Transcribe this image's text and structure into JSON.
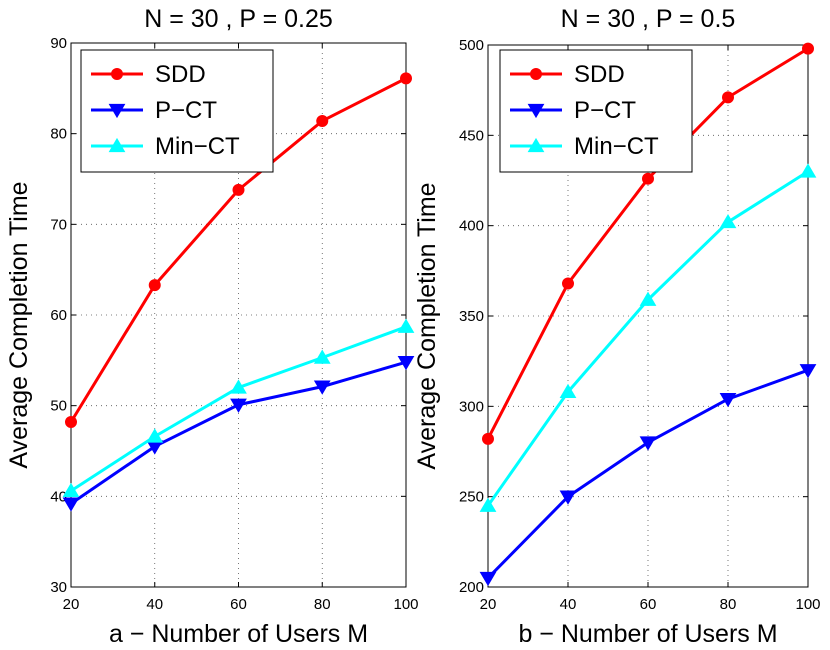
{
  "chart_data": [
    {
      "type": "line",
      "title": "N = 30 , P = 0.25",
      "xlabel": "a − Number of Users M",
      "ylabel": "Average Completion Time",
      "x": [
        20,
        40,
        60,
        80,
        100
      ],
      "xlim": [
        20,
        100
      ],
      "ylim": [
        30,
        90
      ],
      "xticks": [
        20,
        40,
        60,
        80,
        100
      ],
      "yticks": [
        30,
        40,
        50,
        60,
        70,
        80,
        90
      ],
      "grid": true,
      "legend_position": "top-left",
      "series": [
        {
          "name": "SDD",
          "color": "#ff0000",
          "marker": "circle",
          "values": [
            48.2,
            63.3,
            73.8,
            81.4,
            86.1
          ]
        },
        {
          "name": "P−CT",
          "color": "#0000ff",
          "marker": "triangle-down",
          "values": [
            39.2,
            45.5,
            50.1,
            52.1,
            54.8
          ]
        },
        {
          "name": "Min−CT",
          "color": "#00ffff",
          "marker": "triangle-up",
          "values": [
            40.6,
            46.6,
            52.0,
            55.3,
            58.7
          ]
        }
      ]
    },
    {
      "type": "line",
      "title": "N = 30 , P = 0.5",
      "xlabel": "b − Number of Users M",
      "ylabel": "Average Completion Time",
      "x": [
        20,
        40,
        60,
        80,
        100
      ],
      "xlim": [
        20,
        100
      ],
      "ylim": [
        200,
        500
      ],
      "xticks": [
        20,
        40,
        60,
        80,
        100
      ],
      "yticks": [
        200,
        250,
        300,
        350,
        400,
        450,
        500
      ],
      "grid": true,
      "legend_position": "top-left",
      "series": [
        {
          "name": "SDD",
          "color": "#ff0000",
          "marker": "circle",
          "values": [
            282,
            368,
            426,
            471,
            498
          ]
        },
        {
          "name": "P−CT",
          "color": "#0000ff",
          "marker": "triangle-down",
          "values": [
            205,
            250,
            280,
            304,
            320
          ]
        },
        {
          "name": "Min−CT",
          "color": "#00ffff",
          "marker": "triangle-up",
          "values": [
            245,
            308,
            359,
            402,
            430
          ]
        }
      ]
    }
  ]
}
